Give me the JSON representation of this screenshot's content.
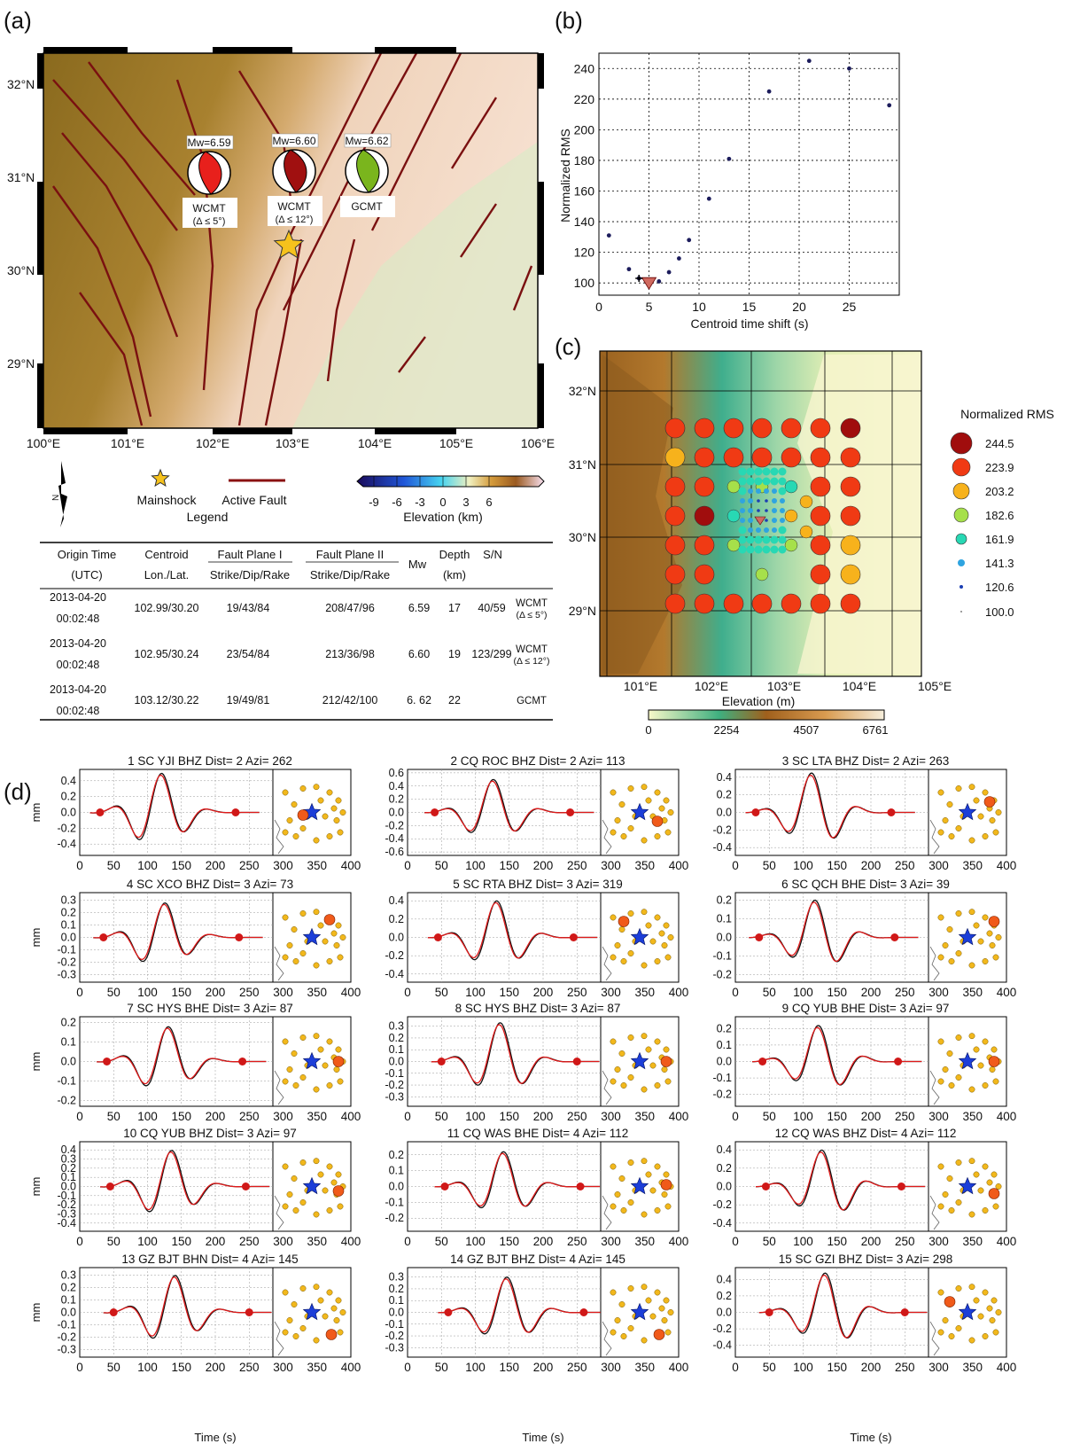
{
  "panel_labels": {
    "a": "(a)",
    "b": "(b)",
    "c": "(c)",
    "d": "(d)"
  },
  "map_a": {
    "lat_ticks": [
      "32°N",
      "31°N",
      "30°N",
      "29°N"
    ],
    "lon_ticks": [
      "100°E",
      "101°E",
      "102°E",
      "103°E",
      "104°E",
      "105°E",
      "106°E"
    ],
    "beachballs": [
      {
        "mw": "Mw=6.59",
        "label1": "WCMT",
        "label2": "(Δ ≤ 5°)",
        "color": "#e8201c"
      },
      {
        "mw": "Mw=6.60",
        "label1": "WCMT",
        "label2": "(Δ ≤ 12°)",
        "color": "#a01010"
      },
      {
        "mw": "Mw=6.62",
        "label1": "GCMT",
        "label2": "",
        "color": "#7ab51d"
      }
    ],
    "legend": {
      "mainshock": "Mainshock",
      "fault": "Active Fault",
      "title": "Legend",
      "elev_ticks": [
        "-9",
        "-6",
        "-3",
        "0",
        "3",
        "6"
      ],
      "elev_label": "Elevation (km)"
    }
  },
  "table": {
    "headers": [
      "Origin Time",
      "Centroid",
      "Fault Plane I",
      "Fault Plane II",
      "Mw",
      "Depth",
      "S/N"
    ],
    "subheaders": [
      "(UTC)",
      "Lon./Lat.",
      "Strike/Dip/Rake",
      "Strike/Dip/Rake",
      "",
      "(km)",
      ""
    ],
    "rows": [
      {
        "date": "2013-04-20",
        "time": "00:02:48",
        "centroid": "102.99/30.20",
        "fp1": "19/43/84",
        "fp2": "208/47/96",
        "mw": "6.59",
        "depth": "17",
        "sn": "40/59",
        "src1": "WCMT",
        "src2": "(Δ ≤ 5°)"
      },
      {
        "date": "2013-04-20",
        "time": "00:02:48",
        "centroid": "102.95/30.24",
        "fp1": "23/54/84",
        "fp2": "213/36/98",
        "mw": "6.60",
        "depth": "19",
        "sn": "123/299",
        "src1": "WCMT",
        "src2": "(Δ ≤ 12°)"
      },
      {
        "date": "2013-04-20",
        "time": "00:02:48",
        "centroid": "103.12/30.22",
        "fp1": "19/49/81",
        "fp2": "212/42/100",
        "mw": "6. 62",
        "depth": "22",
        "sn": "",
        "src1": "GCMT",
        "src2": ""
      }
    ]
  },
  "chart_data": [
    {
      "type": "scatter",
      "xlabel": "Centroid time shift (s)",
      "ylabel": "Normalized RMS",
      "xlim": [
        0,
        30
      ],
      "ylim": [
        92,
        250
      ],
      "xticks": [
        0,
        5,
        10,
        15,
        20,
        25
      ],
      "yticks": [
        100,
        120,
        140,
        160,
        180,
        200,
        220,
        240
      ],
      "grid": true,
      "points": [
        [
          1,
          131
        ],
        [
          3,
          109
        ],
        [
          4,
          103
        ],
        [
          5,
          100
        ],
        [
          6,
          101
        ],
        [
          7,
          107
        ],
        [
          8,
          116
        ],
        [
          9,
          128
        ],
        [
          11,
          155
        ],
        [
          13,
          181
        ],
        [
          17,
          225
        ],
        [
          21,
          245
        ],
        [
          25,
          240
        ],
        [
          29,
          216
        ]
      ],
      "best_x": 5
    },
    {
      "type": "scatter",
      "xlabel": "Elevation (m)",
      "lon_ticks": [
        "101°E",
        "102°E",
        "103°E",
        "104°E",
        "105°E"
      ],
      "lat_ticks": [
        "32°N",
        "31°N",
        "30°N",
        "29°N"
      ],
      "cbar_ticks": [
        "0",
        "2254",
        "4507",
        "6761"
      ],
      "legend_title": "Normalized RMS",
      "legend": [
        {
          "label": "244.5",
          "color": "#a00d0d"
        },
        {
          "label": "223.9",
          "color": "#f03a14"
        },
        {
          "label": "203.2",
          "color": "#f7b21c"
        },
        {
          "label": "182.6",
          "color": "#a6e04a"
        },
        {
          "label": "161.9",
          "color": "#28d8b4"
        },
        {
          "label": "141.3",
          "color": "#2fa4e0"
        },
        {
          "label": "120.6",
          "color": "#1b3fb3"
        },
        {
          "label": "100.0",
          "color": "#111111"
        }
      ]
    },
    {
      "type": "line",
      "xlabel": "Time (s)",
      "ylabel": "mm",
      "traces": [
        {
          "title": "1 SC YJI BHZ Dist=   2 Azi= 262",
          "yticks": [
            "0.4",
            "0.2",
            "0.0",
            "-0.2",
            "-0.4"
          ],
          "amp": 0.5,
          "ymax": 0.5
        },
        {
          "title": "2 CQ ROC BHZ Dist=   2 Azi= 113",
          "yticks": [
            "0.6",
            "0.4",
            "0.2",
            "0.0",
            "-0.2",
            "-0.4",
            "-0.6"
          ],
          "amp": 0.5,
          "ymax": 0.6
        },
        {
          "title": "3 SC LTA BHZ Dist=   2 Azi= 263",
          "yticks": [
            "0.4",
            "0.2",
            "0.0",
            "-0.2",
            "-0.4"
          ],
          "amp": 0.45,
          "ymax": 0.45
        },
        {
          "title": "4 SC XCO BHZ Dist=   3 Azi=  73",
          "yticks": [
            "0.3",
            "0.2",
            "0.1",
            "0.0",
            "-0.1",
            "-0.2",
            "-0.3"
          ],
          "amp": 0.28,
          "ymax": 0.33
        },
        {
          "title": "5 SC RTA BHZ Dist=   3 Azi= 319",
          "yticks": [
            "0.4",
            "0.2",
            "0.0",
            "-0.2",
            "-0.4"
          ],
          "amp": 0.4,
          "ymax": 0.45
        },
        {
          "title": "6 SC QCH BHE Dist=   3 Azi=  39",
          "yticks": [
            "0.2",
            "0.1",
            "0.0",
            "-0.1",
            "-0.2"
          ],
          "amp": 0.2,
          "ymax": 0.22
        },
        {
          "title": "7 SC HYS BHE Dist=   3 Azi=  87",
          "yticks": [
            "0.2",
            "0.1",
            "0.0",
            "-0.1",
            "-0.2"
          ],
          "amp": 0.18,
          "ymax": 0.21
        },
        {
          "title": "8 SC HYS BHZ Dist=   3 Azi=  87",
          "yticks": [
            "0.3",
            "0.2",
            "0.1",
            "0.0",
            "-0.1",
            "-0.2",
            "-0.3"
          ],
          "amp": 0.33,
          "ymax": 0.35
        },
        {
          "title": "9 CQ YUB BHE Dist=   3 Azi=  97",
          "yticks": [
            "0.2",
            "0.1",
            "0.0",
            "-0.1",
            "-0.2"
          ],
          "amp": 0.22,
          "ymax": 0.25
        },
        {
          "title": "10 CQ YUB BHZ Dist=   3 Azi=  97",
          "yticks": [
            "0.4",
            "0.3",
            "0.2",
            "0.1",
            "0.0",
            "-0.1",
            "-0.2",
            "-0.3",
            "-0.4"
          ],
          "amp": 0.4,
          "ymax": 0.45
        },
        {
          "title": "11 CQ WAS BHE Dist=   4 Azi= 112",
          "yticks": [
            "0.2",
            "0.1",
            "0.0",
            "-0.1",
            "-0.2"
          ],
          "amp": 0.22,
          "ymax": 0.26
        },
        {
          "title": "12 CQ WAS BHZ Dist=   4 Azi= 112",
          "yticks": [
            "0.4",
            "0.2",
            "0.0",
            "-0.2",
            "-0.4"
          ],
          "amp": 0.4,
          "ymax": 0.45
        },
        {
          "title": "13 GZ BJT BHN Dist=   4 Azi= 145",
          "yticks": [
            "0.3",
            "0.2",
            "0.1",
            "0.0",
            "-0.1",
            "-0.2",
            "-0.3"
          ],
          "amp": 0.3,
          "ymax": 0.33
        },
        {
          "title": "14 GZ BJT BHZ Dist=   4 Azi= 145",
          "yticks": [
            "0.3",
            "0.2",
            "0.1",
            "0.0",
            "-0.1",
            "-0.2",
            "-0.3"
          ],
          "amp": 0.3,
          "ymax": 0.35
        },
        {
          "title": "15 SC GZI BHZ Dist=   3 Azi= 298",
          "yticks": [
            "0.4",
            "0.2",
            "0.0",
            "-0.2",
            "-0.4"
          ],
          "amp": 0.48,
          "ymax": 0.5
        }
      ],
      "xticks": [
        "0",
        "50",
        "100",
        "150",
        "200",
        "250",
        "300",
        "350",
        "400"
      ]
    }
  ]
}
